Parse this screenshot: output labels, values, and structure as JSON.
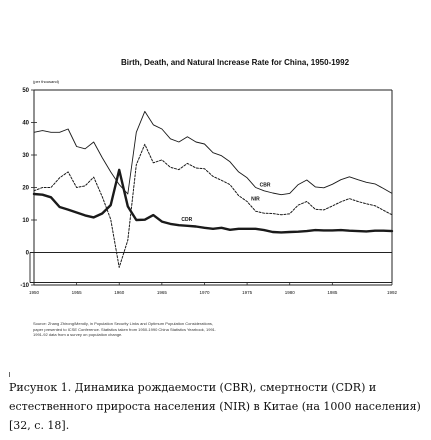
{
  "chart_data": {
    "type": "line",
    "title": "Birth, Death, and Natural Increase Rate for China, 1950-1992",
    "unit_label": "(per thousand)",
    "xlim": [
      1950,
      1992
    ],
    "ylim": [
      -10,
      50
    ],
    "x_ticks": [
      1950,
      1955,
      1960,
      1965,
      1970,
      1975,
      1980,
      1985,
      1992
    ],
    "x_tick_labels": [
      "1950",
      "1955",
      "1960",
      "1965",
      "1970",
      "1975",
      "1980",
      "1985",
      "1992"
    ],
    "y_ticks": [
      -10,
      0,
      10,
      20,
      30,
      40,
      50
    ],
    "y_tick_labels": [
      "-10",
      "0",
      "10",
      "20",
      "30",
      "40",
      "50"
    ],
    "grid": false,
    "series": [
      {
        "name": "CBR",
        "style": "solid",
        "points": [
          [
            1950,
            37
          ],
          [
            1951,
            37.5
          ],
          [
            1952,
            37
          ],
          [
            1953,
            37
          ],
          [
            1954,
            38
          ],
          [
            1955,
            32.6
          ],
          [
            1956,
            31.9
          ],
          [
            1957,
            34
          ],
          [
            1958,
            29.2
          ],
          [
            1959,
            24.8
          ],
          [
            1960,
            20.9
          ],
          [
            1961,
            18
          ],
          [
            1962,
            37
          ],
          [
            1963,
            43.4
          ],
          [
            1964,
            39.3
          ],
          [
            1965,
            38
          ],
          [
            1966,
            35
          ],
          [
            1967,
            34
          ],
          [
            1968,
            35.6
          ],
          [
            1969,
            34
          ],
          [
            1970,
            33.4
          ],
          [
            1971,
            30.7
          ],
          [
            1972,
            29.8
          ],
          [
            1973,
            27.9
          ],
          [
            1974,
            24.8
          ],
          [
            1975,
            23
          ],
          [
            1976,
            20
          ],
          [
            1977,
            19
          ],
          [
            1978,
            18.3
          ],
          [
            1979,
            17.8
          ],
          [
            1980,
            18.2
          ],
          [
            1981,
            20.9
          ],
          [
            1982,
            22.3
          ],
          [
            1983,
            20.2
          ],
          [
            1984,
            19.9
          ],
          [
            1985,
            21
          ],
          [
            1986,
            22.4
          ],
          [
            1987,
            23.3
          ],
          [
            1988,
            22.4
          ],
          [
            1989,
            21.6
          ],
          [
            1990,
            21.1
          ],
          [
            1991,
            19.7
          ],
          [
            1992,
            18.2
          ]
        ]
      },
      {
        "name": "NIR",
        "style": "dashed",
        "points": [
          [
            1950,
            19
          ],
          [
            1951,
            20
          ],
          [
            1952,
            20
          ],
          [
            1953,
            23
          ],
          [
            1954,
            24.8
          ],
          [
            1955,
            20
          ],
          [
            1956,
            20.5
          ],
          [
            1957,
            23.2
          ],
          [
            1958,
            17.2
          ],
          [
            1959,
            10.2
          ],
          [
            1960,
            -4.6
          ],
          [
            1961,
            3.8
          ],
          [
            1962,
            27
          ],
          [
            1963,
            33.3
          ],
          [
            1964,
            27.6
          ],
          [
            1965,
            28.5
          ],
          [
            1966,
            26.2
          ],
          [
            1967,
            25.5
          ],
          [
            1968,
            27.4
          ],
          [
            1969,
            26
          ],
          [
            1970,
            25.8
          ],
          [
            1971,
            23.4
          ],
          [
            1972,
            22.2
          ],
          [
            1973,
            20.9
          ],
          [
            1974,
            17.5
          ],
          [
            1975,
            15.7
          ],
          [
            1976,
            12.7
          ],
          [
            1977,
            12.1
          ],
          [
            1978,
            12
          ],
          [
            1979,
            11.6
          ],
          [
            1980,
            11.9
          ],
          [
            1981,
            14.6
          ],
          [
            1982,
            15.7
          ],
          [
            1983,
            13.3
          ],
          [
            1984,
            13.1
          ],
          [
            1985,
            14.3
          ],
          [
            1986,
            15.6
          ],
          [
            1987,
            16.6
          ],
          [
            1988,
            15.7
          ],
          [
            1989,
            15
          ],
          [
            1990,
            14.4
          ],
          [
            1991,
            13
          ],
          [
            1992,
            11.6
          ]
        ]
      },
      {
        "name": "CDR",
        "style": "solid",
        "points": [
          [
            1950,
            18
          ],
          [
            1951,
            17.8
          ],
          [
            1952,
            17
          ],
          [
            1953,
            14
          ],
          [
            1954,
            13.2
          ],
          [
            1955,
            12.3
          ],
          [
            1956,
            11.4
          ],
          [
            1957,
            10.8
          ],
          [
            1958,
            12
          ],
          [
            1959,
            14.6
          ],
          [
            1960,
            25.4
          ],
          [
            1961,
            14.2
          ],
          [
            1962,
            10
          ],
          [
            1963,
            10.1
          ],
          [
            1964,
            11.5
          ],
          [
            1965,
            9.5
          ],
          [
            1966,
            8.8
          ],
          [
            1967,
            8.4
          ],
          [
            1968,
            8.2
          ],
          [
            1969,
            8
          ],
          [
            1970,
            7.6
          ],
          [
            1971,
            7.3
          ],
          [
            1972,
            7.6
          ],
          [
            1973,
            7
          ],
          [
            1974,
            7.3
          ],
          [
            1975,
            7.3
          ],
          [
            1976,
            7.3
          ],
          [
            1977,
            6.9
          ],
          [
            1978,
            6.3
          ],
          [
            1979,
            6.2
          ],
          [
            1980,
            6.3
          ],
          [
            1981,
            6.4
          ],
          [
            1982,
            6.6
          ],
          [
            1983,
            6.9
          ],
          [
            1984,
            6.8
          ],
          [
            1985,
            6.8
          ],
          [
            1986,
            6.9
          ],
          [
            1987,
            6.7
          ],
          [
            1988,
            6.6
          ],
          [
            1989,
            6.5
          ],
          [
            1990,
            6.7
          ],
          [
            1991,
            6.7
          ],
          [
            1992,
            6.6
          ]
        ]
      }
    ]
  },
  "source_note": [
    "Source: Zhang Zhirong/Mendly, in Population Security Links and Optimum Population Considerations,",
    "paper presented to ICSE Conference. Statistics taken from 1950-1990 China Statistics Yearbook, 1991.",
    "1991-92 data from a survey on population change."
  ],
  "caption": "Рисунок 1. Динамика рождаемости (CBR), смертности (CDR) и естественного прироста населения (NIR) в Китае (на 1000 населения) [32, с. 18]."
}
